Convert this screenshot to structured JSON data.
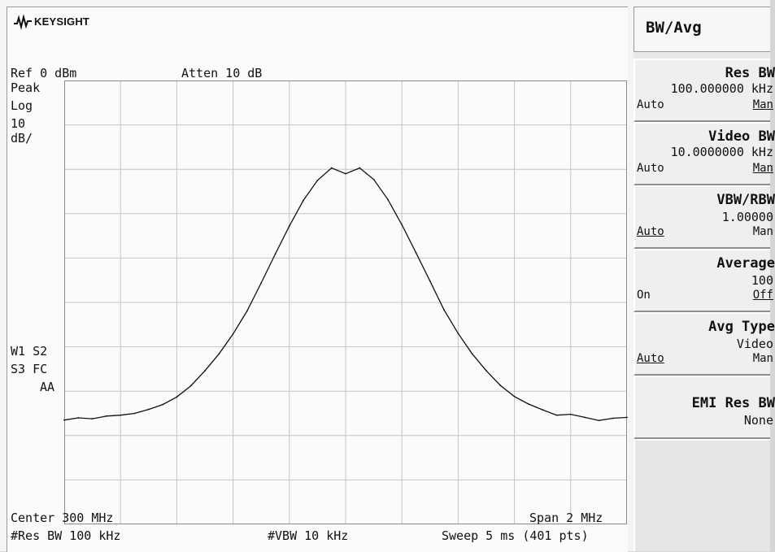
{
  "brand": {
    "name": "KEYSIGHT"
  },
  "header": {
    "ref": "Ref 0 dBm",
    "atten": "Atten 10 dB"
  },
  "trace_info": {
    "detector": "Peak",
    "scale_type": "Log",
    "scale_value": "10",
    "scale_unit": "dB/",
    "status_line1": "W1  S2",
    "status_line2": "S3 FC",
    "status_line3": "AA"
  },
  "footer": {
    "center": "Center 300 MHz",
    "span": "Span 2 MHz",
    "res_bw": "#Res BW 100 kHz",
    "vbw": "#VBW 10 kHz",
    "sweep": "Sweep 5 ms (401 pts)"
  },
  "menu": {
    "title": "BW/Avg",
    "keys": [
      {
        "label": "Res BW",
        "value": "100.000000 kHz",
        "left": "Auto",
        "right": "Man",
        "underline": "right"
      },
      {
        "label": "Video BW",
        "value": "10.0000000 kHz",
        "left": "Auto",
        "right": "Man",
        "underline": "right"
      },
      {
        "label": "VBW/RBW",
        "value": "1.00000",
        "left": "Auto",
        "right": "Man",
        "underline": "left"
      },
      {
        "label": "Average",
        "value": "100",
        "left": "On",
        "right": "Off",
        "underline": "right"
      },
      {
        "label": "Avg Type",
        "value": "Video",
        "left": "Auto",
        "right": "Man",
        "underline": "left"
      },
      {
        "label": "EMI Res BW",
        "value": "None",
        "left": "",
        "right": "",
        "underline": ""
      }
    ]
  },
  "chart_data": {
    "type": "line",
    "xlabel": "",
    "ylabel": "",
    "x_unit": "MHz",
    "y_unit": "dBm",
    "xlim": [
      299,
      301
    ],
    "ylim": [
      -100,
      0
    ],
    "grid": true,
    "series": [
      {
        "x": [
          299.0,
          299.05,
          299.1,
          299.15,
          299.2,
          299.25,
          299.3,
          299.35,
          299.4,
          299.45,
          299.5,
          299.55,
          299.6,
          299.65,
          299.7,
          299.75,
          299.8,
          299.85,
          299.9,
          299.95,
          300.0,
          300.05,
          300.1,
          300.15,
          300.2,
          300.25,
          300.3,
          300.35,
          300.4,
          300.45,
          300.5,
          300.55,
          300.6,
          300.65,
          300.7,
          300.75,
          300.8,
          300.85,
          300.9,
          300.95,
          301.0
        ],
        "y": [
          -76.5,
          -76.0,
          -76.2,
          -75.6,
          -75.4,
          -75.0,
          -74.1,
          -73.0,
          -71.3,
          -68.8,
          -65.4,
          -61.6,
          -57.1,
          -51.9,
          -45.6,
          -39.1,
          -32.8,
          -27.0,
          -22.5,
          -19.7,
          -21.0,
          -19.7,
          -22.3,
          -26.8,
          -32.5,
          -38.8,
          -45.2,
          -51.7,
          -57.0,
          -61.6,
          -65.4,
          -68.7,
          -71.2,
          -72.9,
          -74.2,
          -75.4,
          -75.2,
          -75.9,
          -76.6,
          -76.1,
          -75.9
        ]
      }
    ]
  },
  "colors": {
    "trace": "#111111",
    "grid": "#c4c4c4",
    "border": "#8a8a8a"
  }
}
